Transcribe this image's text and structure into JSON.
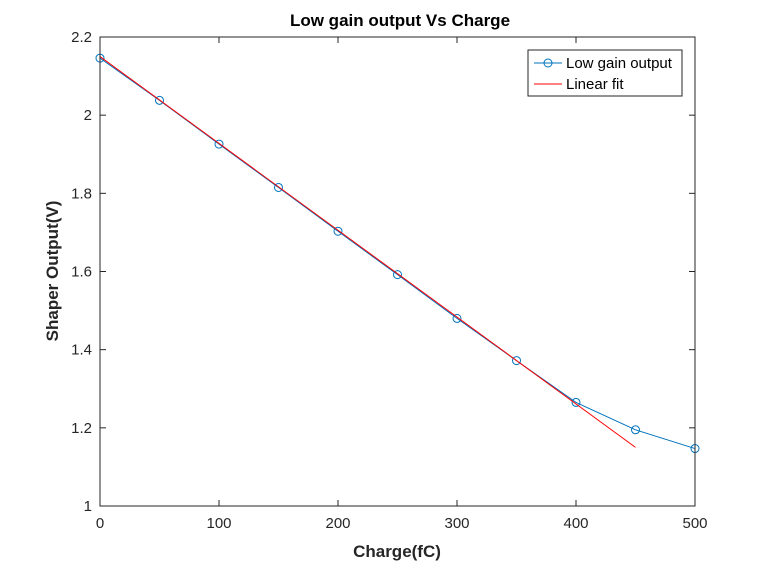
{
  "chart_data": {
    "type": "line",
    "title": "Low gain output Vs Charge",
    "xlabel": "Charge(fC)",
    "ylabel": "Shaper Output(V)",
    "xlim": [
      0,
      500
    ],
    "ylim": [
      1,
      2.2
    ],
    "xticks": [
      0,
      100,
      200,
      300,
      400,
      500
    ],
    "yticks": [
      1,
      1.2,
      1.4,
      1.6,
      1.8,
      2,
      2.2
    ],
    "xtick_labels": [
      "0",
      "100",
      "200",
      "300",
      "400",
      "500"
    ],
    "ytick_labels": [
      "1",
      "1.2",
      "1.4",
      "1.6",
      "1.8",
      "2",
      "2.2"
    ],
    "grid": false,
    "legend_position": "top-right",
    "series": [
      {
        "name": "Low gain output",
        "style": "line-circle-markers",
        "color": "#0072BD",
        "x": [
          0,
          50,
          100,
          150,
          200,
          250,
          300,
          350,
          400,
          450,
          500
        ],
        "y": [
          2.146,
          2.038,
          1.926,
          1.815,
          1.703,
          1.592,
          1.48,
          1.372,
          1.265,
          1.195,
          1.147
        ]
      },
      {
        "name": "Linear fit",
        "style": "line",
        "color": "#FF0000",
        "x": [
          0,
          450
        ],
        "y": [
          2.15,
          1.15
        ]
      }
    ]
  }
}
